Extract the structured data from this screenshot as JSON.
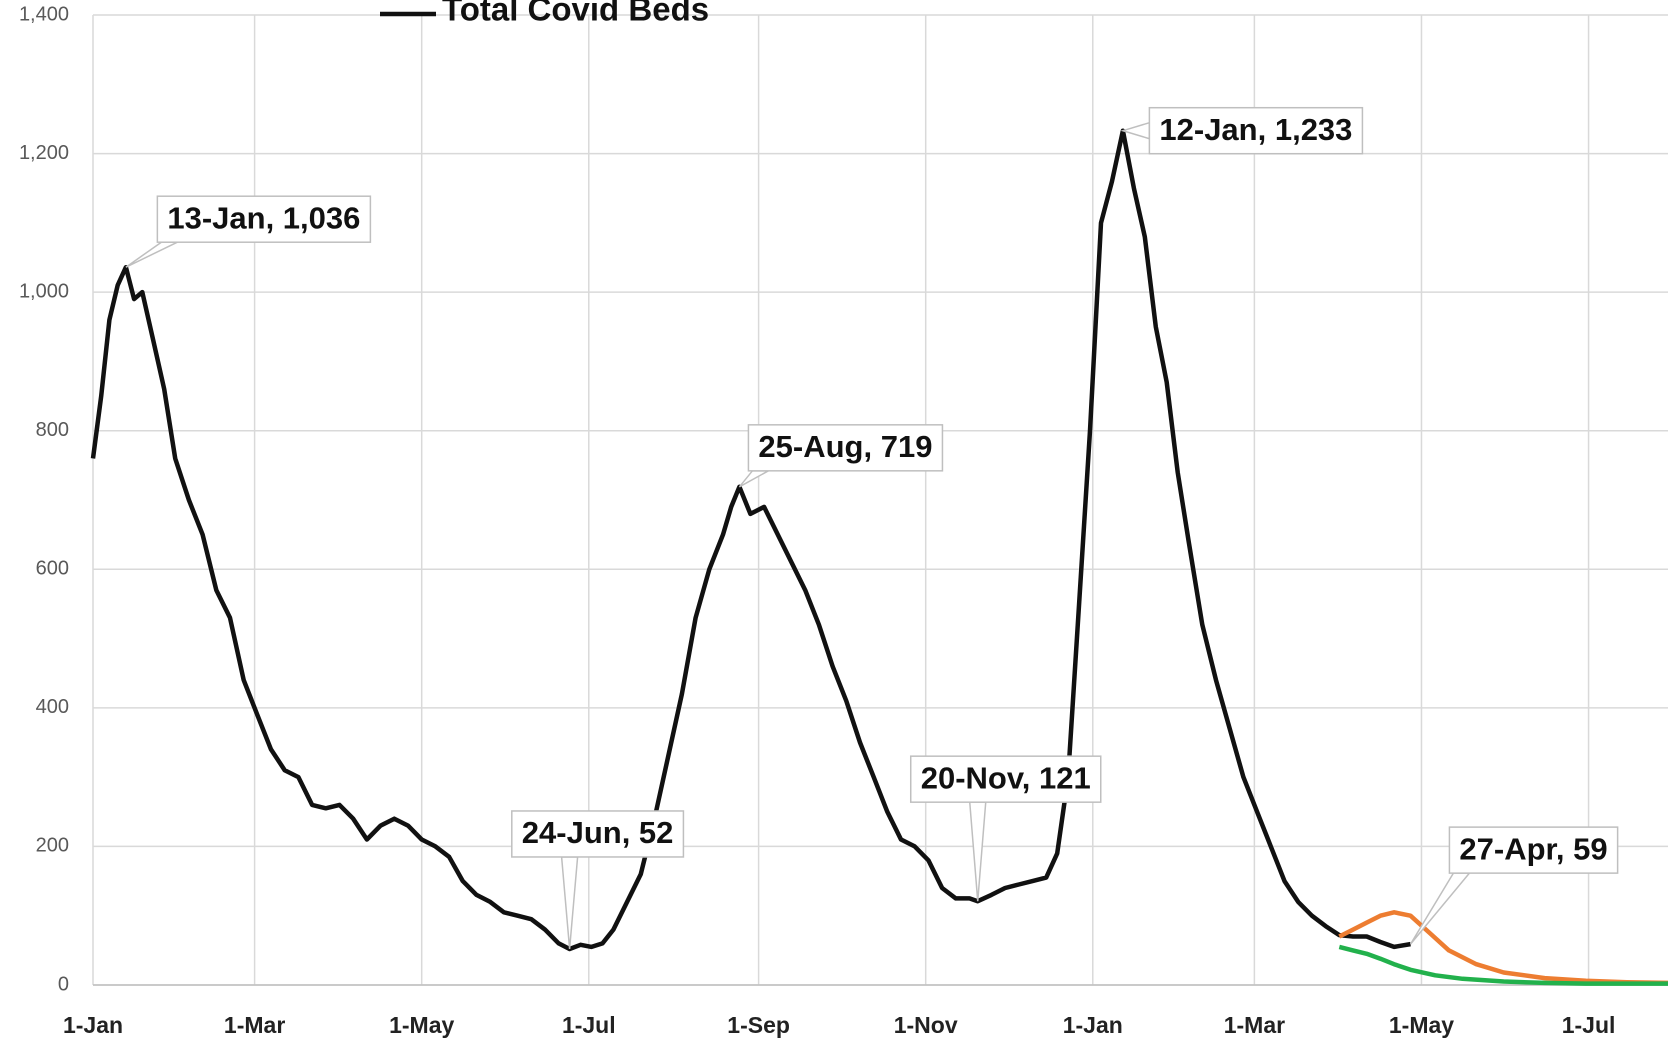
{
  "chart_data": {
    "type": "line",
    "legend": "top",
    "grid": true,
    "xlim": [
      0,
      575
    ],
    "xticks": [
      {
        "value": 0,
        "label": "1-Jan"
      },
      {
        "value": 59,
        "label": "1-Mar"
      },
      {
        "value": 120,
        "label": "1-May"
      },
      {
        "value": 181,
        "label": "1-Jul"
      },
      {
        "value": 243,
        "label": "1-Sep"
      },
      {
        "value": 304,
        "label": "1-Nov"
      },
      {
        "value": 365,
        "label": "1-Jan"
      },
      {
        "value": 424,
        "label": "1-Mar"
      },
      {
        "value": 485,
        "label": "1-May"
      },
      {
        "value": 546,
        "label": "1-Jul"
      }
    ],
    "ylim": [
      0,
      1400
    ],
    "yticks": [
      0,
      200,
      400,
      600,
      800,
      {
        "value": 1000,
        "label": "1,000"
      },
      {
        "value": 1200,
        "label": "1,200"
      },
      {
        "value": 1400,
        "label": "1,400"
      }
    ],
    "series": [
      {
        "name": "Total Covid Beds",
        "color": "#111111",
        "x": [
          0,
          3,
          6,
          9,
          12,
          15,
          18,
          22,
          26,
          30,
          35,
          40,
          45,
          50,
          55,
          60,
          65,
          70,
          75,
          80,
          85,
          90,
          95,
          100,
          105,
          110,
          115,
          120,
          125,
          130,
          135,
          140,
          145,
          150,
          155,
          160,
          165,
          170,
          174,
          178,
          182,
          186,
          190,
          195,
          200,
          205,
          210,
          215,
          220,
          225,
          230,
          233,
          236,
          240,
          245,
          250,
          255,
          260,
          265,
          270,
          275,
          280,
          285,
          290,
          295,
          300,
          305,
          310,
          315,
          320,
          323,
          328,
          333,
          338,
          343,
          348,
          352,
          356,
          360,
          364,
          368,
          372,
          376,
          380,
          384,
          388,
          392,
          396,
          400,
          405,
          410,
          415,
          420,
          425,
          430,
          435,
          440,
          445,
          450,
          455,
          460,
          465,
          470,
          475,
          481
        ],
        "values": [
          760,
          850,
          960,
          1010,
          1036,
          990,
          1000,
          930,
          860,
          760,
          700,
          650,
          570,
          530,
          440,
          390,
          340,
          310,
          300,
          260,
          255,
          260,
          240,
          210,
          230,
          240,
          230,
          210,
          200,
          185,
          150,
          130,
          120,
          105,
          100,
          95,
          80,
          60,
          52,
          58,
          55,
          60,
          80,
          120,
          160,
          240,
          330,
          420,
          530,
          600,
          650,
          690,
          719,
          680,
          690,
          650,
          610,
          570,
          520,
          460,
          410,
          350,
          300,
          250,
          210,
          200,
          180,
          140,
          125,
          125,
          121,
          130,
          140,
          145,
          150,
          155,
          190,
          300,
          550,
          800,
          1100,
          1160,
          1233,
          1150,
          1080,
          950,
          870,
          740,
          640,
          520,
          440,
          370,
          300,
          250,
          200,
          150,
          120,
          100,
          85,
          72,
          70,
          70,
          62,
          55,
          59
        ]
      },
      {
        "color": "#ed7d31",
        "x": [
          455,
          460,
          465,
          470,
          475,
          481,
          488,
          495,
          505,
          515,
          530,
          545,
          560,
          575
        ],
        "values": [
          70,
          80,
          90,
          100,
          105,
          100,
          75,
          50,
          30,
          18,
          10,
          6,
          4,
          3
        ]
      },
      {
        "color": "#22b14c",
        "x": [
          455,
          460,
          465,
          470,
          475,
          481,
          490,
          500,
          515,
          530,
          545,
          560,
          575
        ],
        "values": [
          55,
          50,
          45,
          38,
          30,
          22,
          14,
          9,
          5,
          3,
          2,
          2,
          2
        ]
      }
    ],
    "annotations": [
      {
        "x": 12,
        "y": 1036,
        "label": "13-Jan, 1,036"
      },
      {
        "x": 174,
        "y": 52,
        "label": "24-Jun, 52"
      },
      {
        "x": 236,
        "y": 719,
        "label": "25-Aug, 719"
      },
      {
        "x": 323,
        "y": 121,
        "label": "20-Nov, 121"
      },
      {
        "x": 376,
        "y": 1233,
        "label": "12-Jan, 1,233"
      },
      {
        "x": 481,
        "y": 59,
        "label": "27-Apr, 59"
      }
    ]
  }
}
